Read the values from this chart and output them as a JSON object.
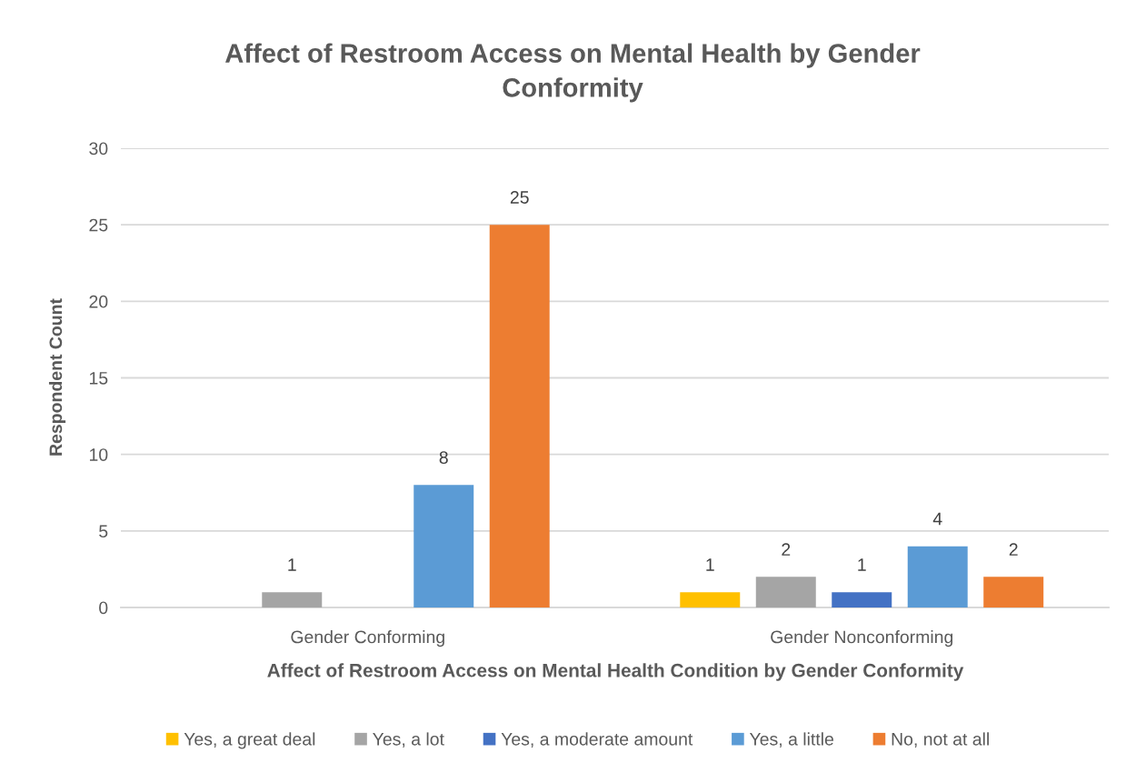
{
  "chart_data": {
    "type": "bar",
    "title": "Affect of Restroom Access on Mental Health by Gender\nConformity",
    "xlabel": "Affect of Restroom Access on Mental Health Condition by Gender Conformity",
    "ylabel": "Respondent Count",
    "categories": [
      "Gender Conforming",
      "Gender Nonconforming"
    ],
    "series": [
      {
        "name": "Yes, a great deal",
        "color": "#ffc000",
        "values": [
          null,
          1
        ]
      },
      {
        "name": "Yes, a lot",
        "color": "#a5a5a5",
        "values": [
          1,
          2
        ]
      },
      {
        "name": "Yes, a moderate amount",
        "color": "#4472c4",
        "values": [
          null,
          1
        ]
      },
      {
        "name": "Yes, a little",
        "color": "#5b9bd5",
        "values": [
          8,
          4
        ]
      },
      {
        "name": "No, not at all",
        "color": "#ed7d31",
        "values": [
          25,
          2
        ]
      }
    ],
    "ylim": [
      0,
      30
    ],
    "yticks": [
      0,
      5,
      10,
      15,
      20,
      25,
      30
    ],
    "grid": "y",
    "legend": "bottom",
    "data_labels": true
  }
}
